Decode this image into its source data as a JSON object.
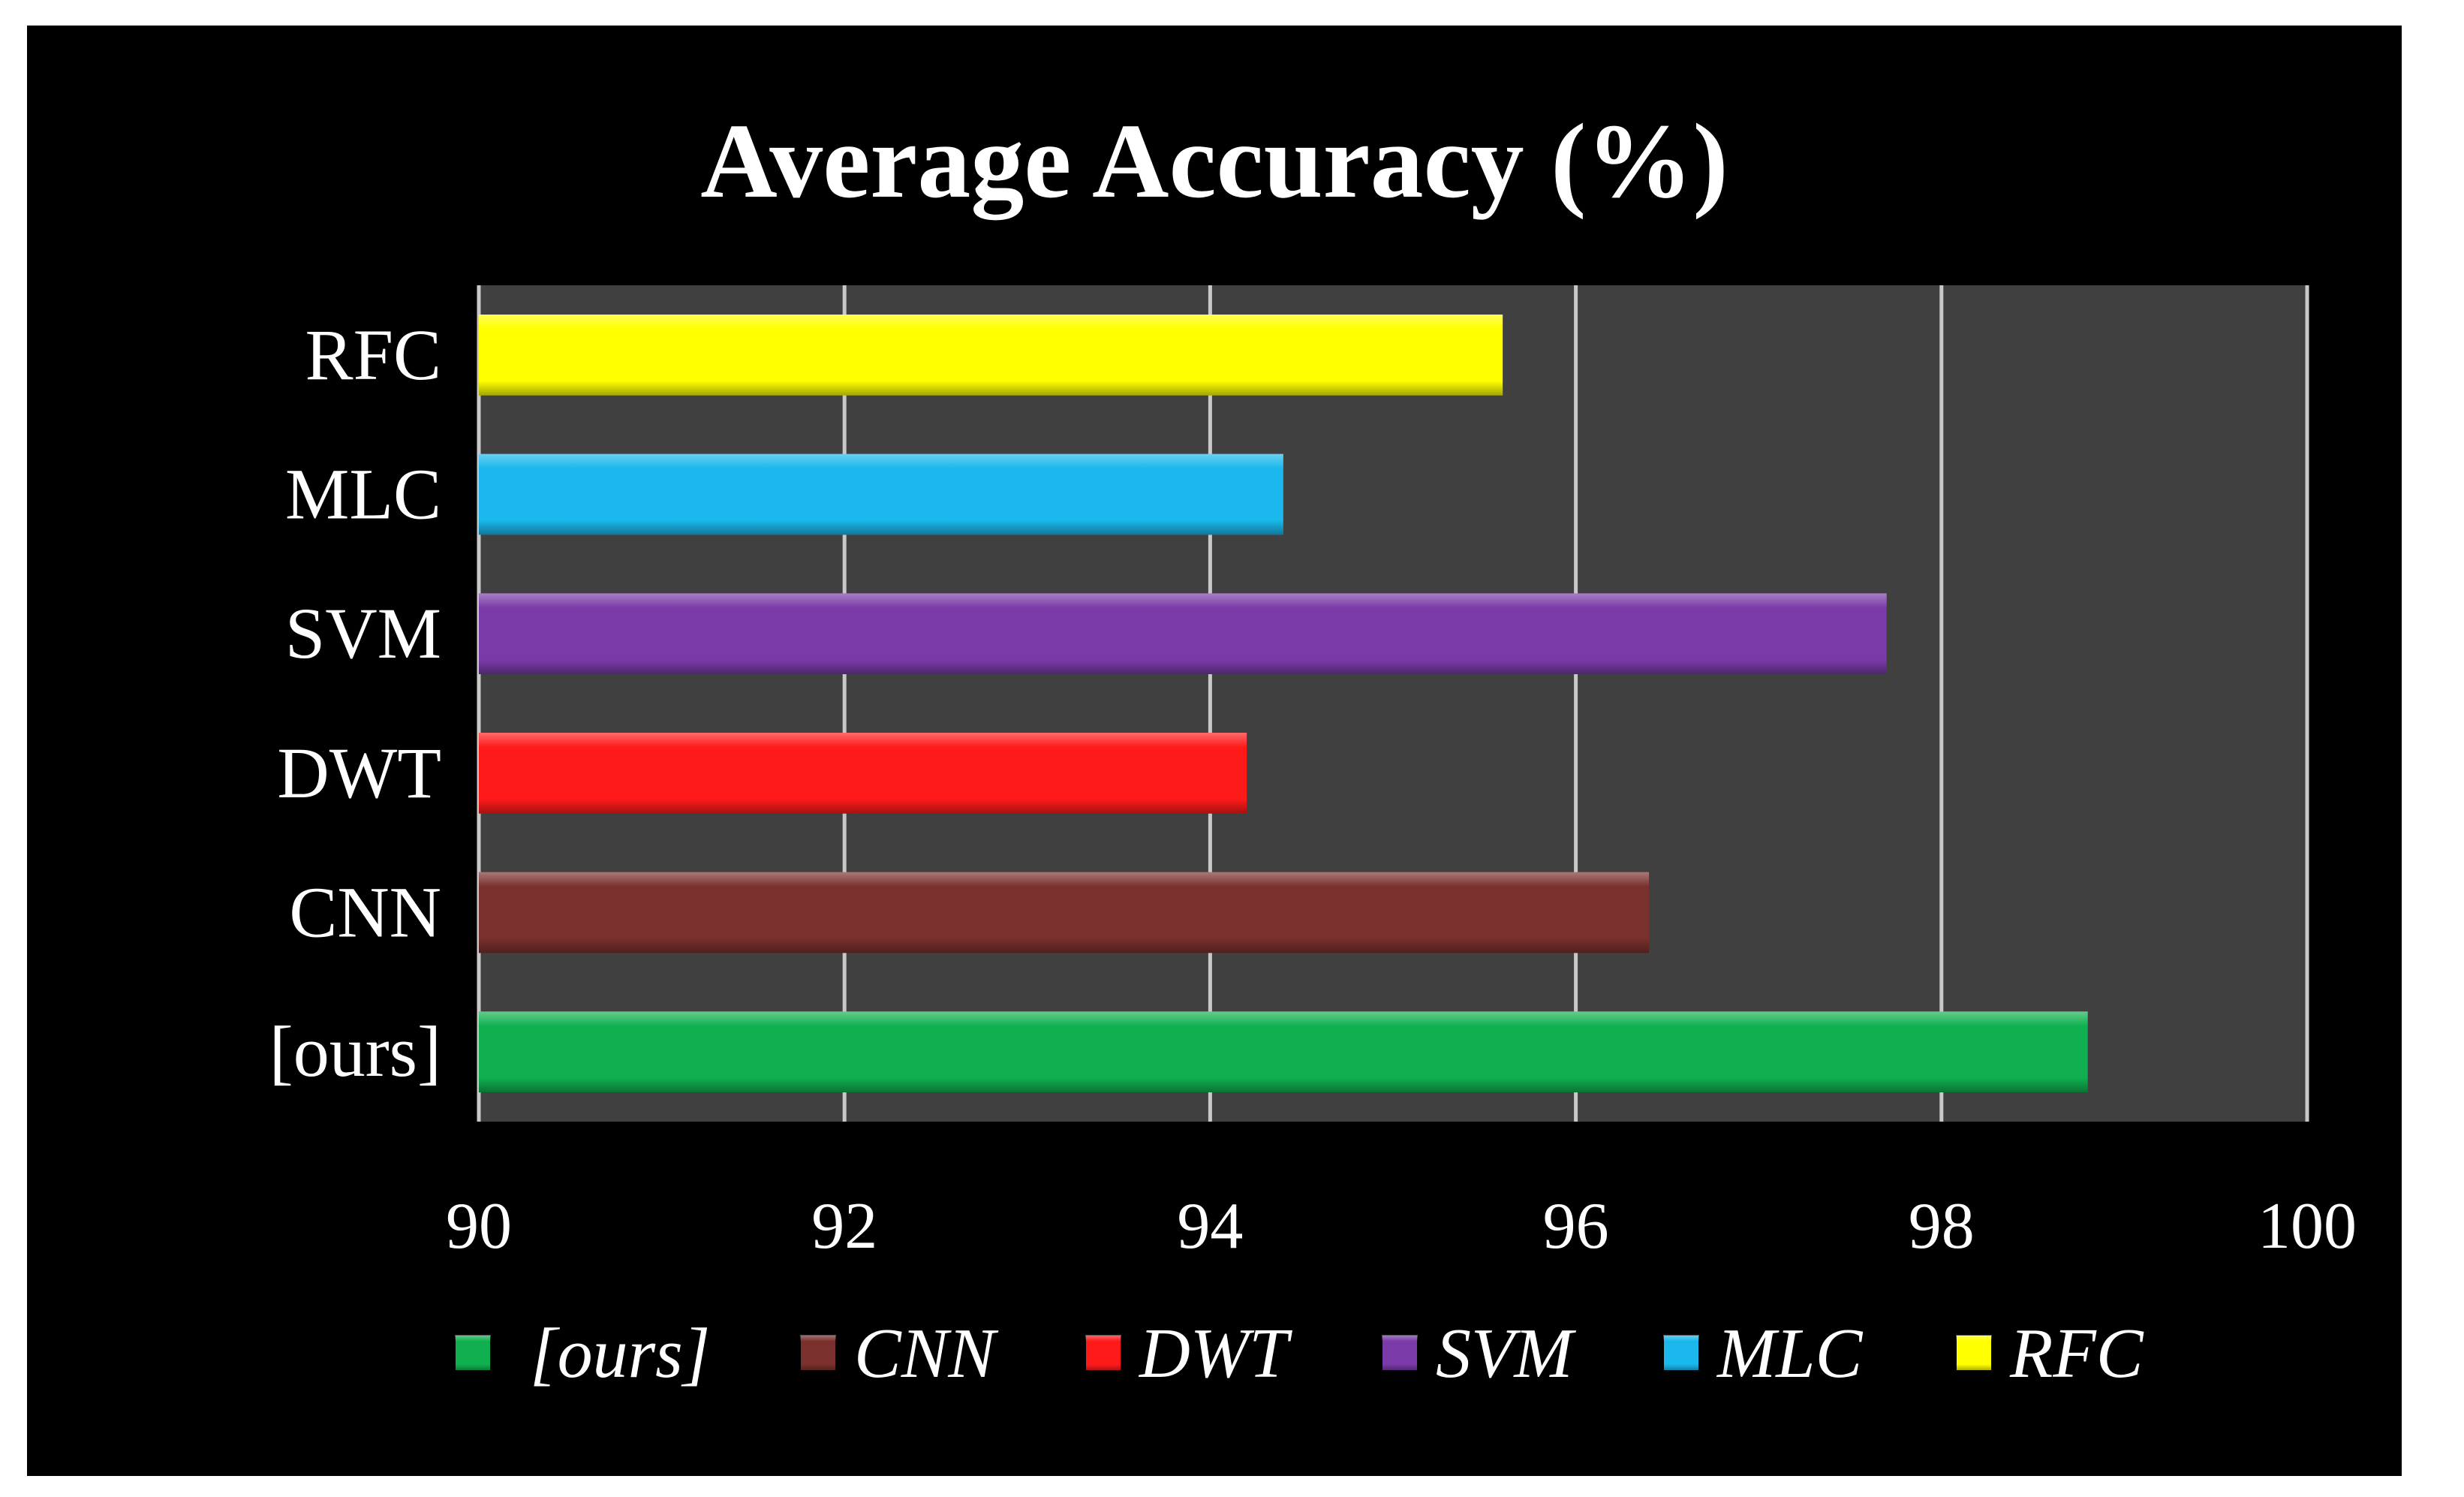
{
  "chart_data": {
    "type": "bar",
    "orientation": "horizontal",
    "title": "Average Accuracy (%)",
    "xlabel": "",
    "ylabel": "",
    "categories": [
      "[ours]",
      "CNN",
      "DWT",
      "SVM",
      "MLC",
      "RFC"
    ],
    "values": [
      98.8,
      96.4,
      94.2,
      97.7,
      94.4,
      95.6
    ],
    "colors": [
      "#10b050",
      "#7a302c",
      "#ff1a1a",
      "#7a3aa8",
      "#1ab8ec",
      "#ffff00"
    ],
    "xlim": [
      90,
      100
    ],
    "xticks": [
      "90",
      "92",
      "94",
      "96",
      "98",
      "100"
    ],
    "grid": true,
    "plot_background": "#404040",
    "legend": {
      "position": "bottom",
      "entries": [
        "[ours]",
        "CNN",
        "DWT",
        "SVM",
        "MLC",
        "RFC"
      ]
    }
  }
}
